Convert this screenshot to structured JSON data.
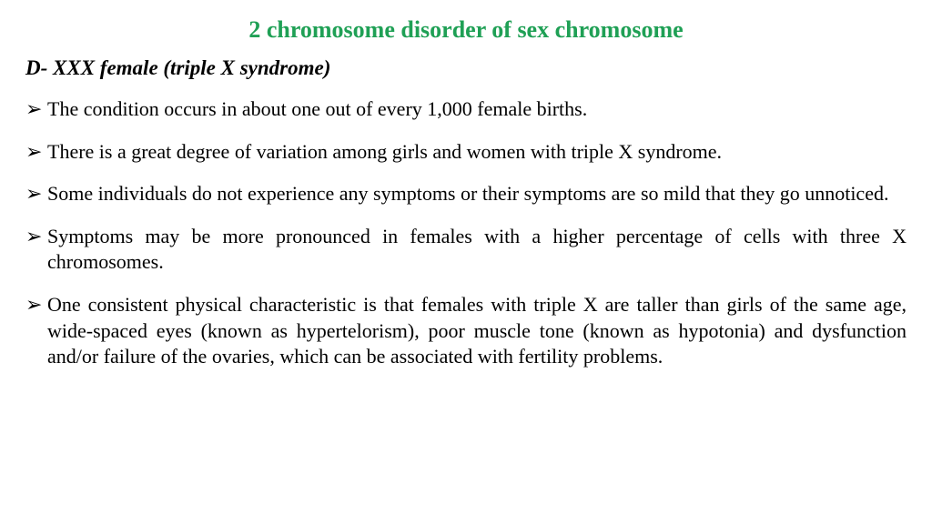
{
  "title": {
    "text": "2  chromosome disorder of  sex chromosome",
    "color": "#1fa055",
    "fontsize": 26
  },
  "subtitle": {
    "text": "D- XXX female (triple X syndrome)",
    "color": "#000000",
    "fontsize": 23
  },
  "body": {
    "color": "#000000",
    "fontsize": 22,
    "line_height": 1.3
  },
  "bullets": [
    "The condition occurs in about one out of every 1,000 female births.",
    "There is a great degree of variation among girls and women with triple X syndrome.",
    "Some individuals do not experience any symptoms or their symptoms are so mild that they go unnoticed.",
    "Symptoms may be more pronounced in females with a higher percentage of cells with three X chromosomes.",
    "One consistent physical characteristic is that females with triple X are taller than girls of the same age, wide-spaced eyes (known as hypertelorism), poor muscle tone (known as hypotonia) and dysfunction and/or failure of the ovaries, which can be associated with fertility problems."
  ]
}
